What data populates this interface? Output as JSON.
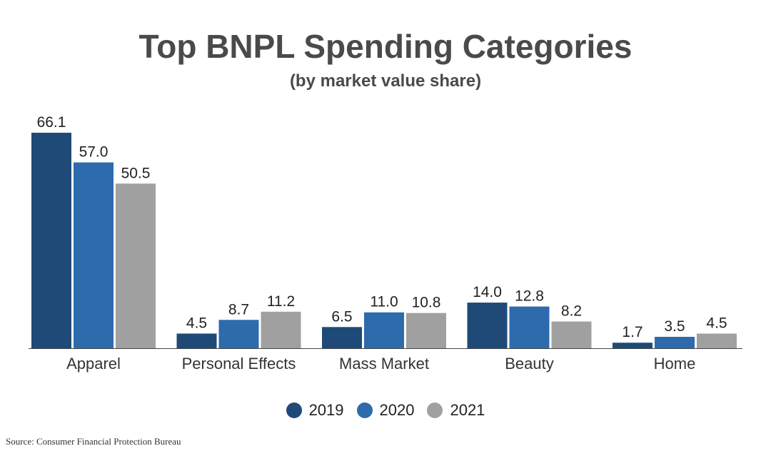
{
  "colors": {
    "2019": "#1f4a78",
    "2020": "#2e6bad",
    "2021": "#a0a0a0",
    "text": "#4a4a4a",
    "axis": "#444444"
  },
  "footer": {
    "source": "Source: Consumer Financial Protection Bureau"
  },
  "chart_data": {
    "type": "bar",
    "title": "Top BNPL Spending Categories",
    "subtitle": "(by market value share)",
    "xlabel": "",
    "ylabel": "",
    "categories": [
      "Apparel",
      "Personal Effects",
      "Mass Market",
      "Beauty",
      "Home"
    ],
    "series": [
      {
        "name": "2019",
        "color": "#1f4a78",
        "values": [
          66.1,
          4.5,
          6.5,
          14.0,
          1.7
        ]
      },
      {
        "name": "2020",
        "color": "#2e6bad",
        "values": [
          57.0,
          8.7,
          11.0,
          12.8,
          3.5
        ]
      },
      {
        "name": "2021",
        "color": "#a0a0a0",
        "values": [
          50.5,
          11.2,
          10.8,
          8.2,
          4.5
        ]
      }
    ],
    "ylim": [
      0,
      66.1
    ],
    "grid": false,
    "legend_position": "bottom",
    "data_labels": true
  }
}
